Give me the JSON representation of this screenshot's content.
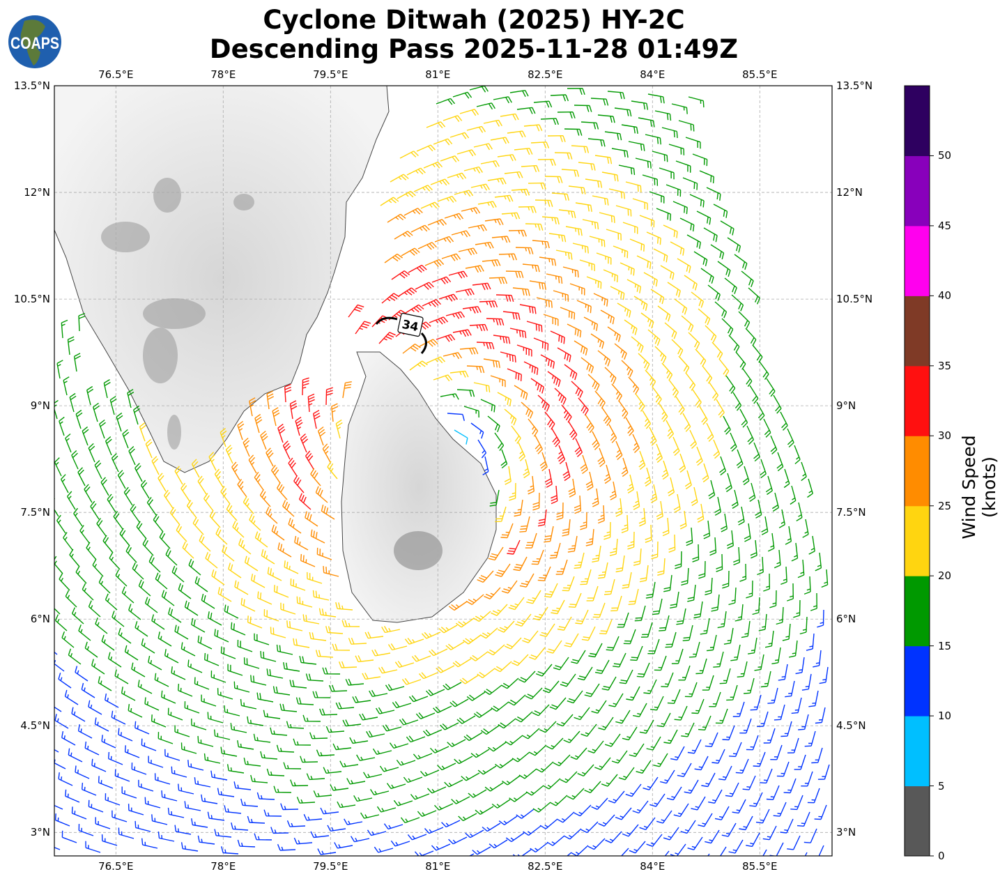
{
  "title": {
    "line1": "Cyclone Ditwah (2025) HY-2C",
    "line2": "Descending Pass 2025-11-28 01:49Z"
  },
  "logo": {
    "text": "COAPS"
  },
  "axes": {
    "lon_ticks": [
      {
        "value": 76.5,
        "label": "76.5°E"
      },
      {
        "value": 78,
        "label": "78°E"
      },
      {
        "value": 79.5,
        "label": "79.5°E"
      },
      {
        "value": 81,
        "label": "81°E"
      },
      {
        "value": 82.5,
        "label": "82.5°E"
      },
      {
        "value": 84,
        "label": "84°E"
      },
      {
        "value": 85.5,
        "label": "85.5°E"
      }
    ],
    "lat_ticks": [
      {
        "value": 13.5,
        "label": "13.5°N"
      },
      {
        "value": 12,
        "label": "12°N"
      },
      {
        "value": 10.5,
        "label": "10.5°N"
      },
      {
        "value": 9,
        "label": "9°N"
      },
      {
        "value": 7.5,
        "label": "7.5°N"
      },
      {
        "value": 6,
        "label": "6°N"
      },
      {
        "value": 4.5,
        "label": "4.5°N"
      },
      {
        "value": 3,
        "label": "3°N"
      }
    ],
    "lon_range": [
      75.64,
      86.51
    ],
    "lat_range": [
      2.67,
      13.5
    ]
  },
  "storm_label": "34",
  "colorbar": {
    "label": "Wind Speed (knots)",
    "ticks": [
      "0",
      "5",
      "10",
      "15",
      "20",
      "25",
      "30",
      "35",
      "40",
      "45",
      "50"
    ],
    "range": [
      0,
      55
    ],
    "colors": [
      "#585858",
      "#00bfff",
      "#0033ff",
      "#009900",
      "#ffd510",
      "#ff8c00",
      "#ff1010",
      "#7f3a26",
      "#ff00ee",
      "#8800bb",
      "#2e0060"
    ]
  }
}
